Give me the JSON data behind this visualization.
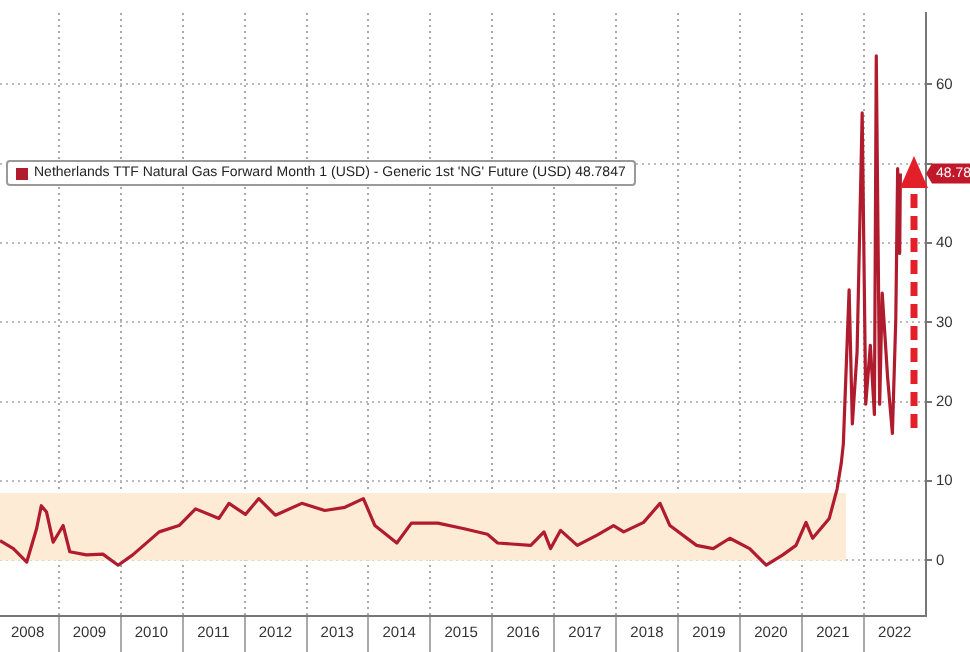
{
  "chart_data": {
    "type": "line",
    "x": [
      "2008-01-20",
      "2008-04-08",
      "2008-06-26",
      "2008-08-23",
      "2008-09-20",
      "2008-10-21",
      "2008-11-29",
      "2009-01-27",
      "2009-03-07",
      "2009-06-13",
      "2009-09-18",
      "2009-12-17",
      "2010-03-13",
      "2010-08-16",
      "2010-12-11",
      "2011-03-18",
      "2011-08-03",
      "2011-10-01",
      "2012-01-06",
      "2012-03-25",
      "2012-07-01",
      "2012-12-04",
      "2013-04-19",
      "2013-08-15",
      "2013-12-02",
      "2014-02-08",
      "2014-06-17",
      "2014-09-11",
      "2015-02-14",
      "2015-07-19",
      "2015-12-03",
      "2016-02-01",
      "2016-08-15",
      "2016-11-01",
      "2016-12-10",
      "2017-02-07",
      "2017-05-16",
      "2017-09-10",
      "2017-12-16",
      "2018-02-14",
      "2018-06-11",
      "2018-09-16",
      "2018-11-13",
      "2019-04-19",
      "2019-07-26",
      "2019-11-01",
      "2020-02-26",
      "2020-06-03",
      "2020-09-09",
      "2020-11-26",
      "2021-01-24",
      "2021-03-04",
      "2021-06-10",
      "2021-07-26",
      "2021-08-20",
      "2021-09-01",
      "2021-10-05",
      "2021-10-24",
      "2021-11-21",
      "2021-12-21",
      "2022-01-11",
      "2022-02-07",
      "2022-03-03",
      "2022-03-14",
      "2022-04-03",
      "2022-04-18",
      "2022-05-20",
      "2022-06-17",
      "2022-07-07",
      "2022-07-18",
      "2022-07-30",
      "2022-08-03"
    ],
    "series": [
      {
        "name": "Netherlands TTF Natural Gas Forward Month 1 (USD) - Generic 1st 'NG' Future (USD) 48.7847",
        "color": "#b01c2e",
        "values": [
          2.5,
          1.5,
          -0.2,
          4,
          6.9,
          6.1,
          2.3,
          4.4,
          1.1,
          0.7,
          0.8,
          -0.6,
          0.7,
          3.6,
          4.4,
          6.5,
          5.3,
          7.2,
          5.8,
          7.8,
          5.7,
          7.2,
          6.3,
          6.7,
          7.8,
          4.4,
          2.2,
          4.7,
          4.7,
          4,
          3.3,
          2.2,
          1.9,
          3.6,
          1.5,
          3.8,
          1.9,
          3.2,
          4.4,
          3.6,
          4.8,
          7.2,
          4.4,
          1.9,
          1.5,
          2.8,
          1.5,
          -0.6,
          0.7,
          1.9,
          4.8,
          2.8,
          5.3,
          9,
          12.3,
          14.7,
          34.1,
          17.2,
          26.3,
          56.4,
          19.7,
          27.1,
          18.4,
          63.6,
          19.7,
          33.7,
          23,
          16,
          30.4,
          49.4,
          38.7,
          48.7847
        ]
      }
    ],
    "xlim": [
      "2008-01-20",
      "2023-01-01"
    ],
    "xticks": [
      {
        "value": "2008-07-01",
        "label": "2008"
      },
      {
        "value": "2009-01-01",
        "label": null
      },
      {
        "value": "2009-07-01",
        "label": "2009"
      },
      {
        "value": "2010-01-01",
        "label": null
      },
      {
        "value": "2010-07-01",
        "label": "2010"
      },
      {
        "value": "2011-01-01",
        "label": null
      },
      {
        "value": "2011-07-01",
        "label": "2011"
      },
      {
        "value": "2012-01-01",
        "label": null
      },
      {
        "value": "2012-07-01",
        "label": "2012"
      },
      {
        "value": "2013-01-01",
        "label": null
      },
      {
        "value": "2013-07-01",
        "label": "2013"
      },
      {
        "value": "2014-01-01",
        "label": null
      },
      {
        "value": "2014-07-01",
        "label": "2014"
      },
      {
        "value": "2015-01-01",
        "label": null
      },
      {
        "value": "2015-07-01",
        "label": "2015"
      },
      {
        "value": "2016-01-01",
        "label": null
      },
      {
        "value": "2016-07-01",
        "label": "2016"
      },
      {
        "value": "2017-01-01",
        "label": null
      },
      {
        "value": "2017-07-01",
        "label": "2017"
      },
      {
        "value": "2018-01-01",
        "label": null
      },
      {
        "value": "2018-07-01",
        "label": "2018"
      },
      {
        "value": "2019-01-01",
        "label": null
      },
      {
        "value": "2019-07-01",
        "label": "2019"
      },
      {
        "value": "2020-01-01",
        "label": null
      },
      {
        "value": "2020-07-01",
        "label": "2020"
      },
      {
        "value": "2021-01-01",
        "label": null
      },
      {
        "value": "2021-07-01",
        "label": "2021"
      },
      {
        "value": "2022-01-01",
        "label": null
      },
      {
        "value": "2022-07-01",
        "label": "2022"
      }
    ],
    "ylim": [
      -7,
      69
    ],
    "yticks": [
      0,
      10,
      20,
      30,
      40,
      {
        "value": 50,
        "label": null
      },
      60
    ],
    "bands": [
      {
        "axis": "y",
        "from": 0,
        "to": 8.5,
        "color": "#fdebd6"
      }
    ],
    "annotations": [
      {
        "text": "48.78",
        "y": 48.7847
      }
    ],
    "grid": true,
    "legend": "top left",
    "marker": "none",
    "line_style": "solid"
  }
}
